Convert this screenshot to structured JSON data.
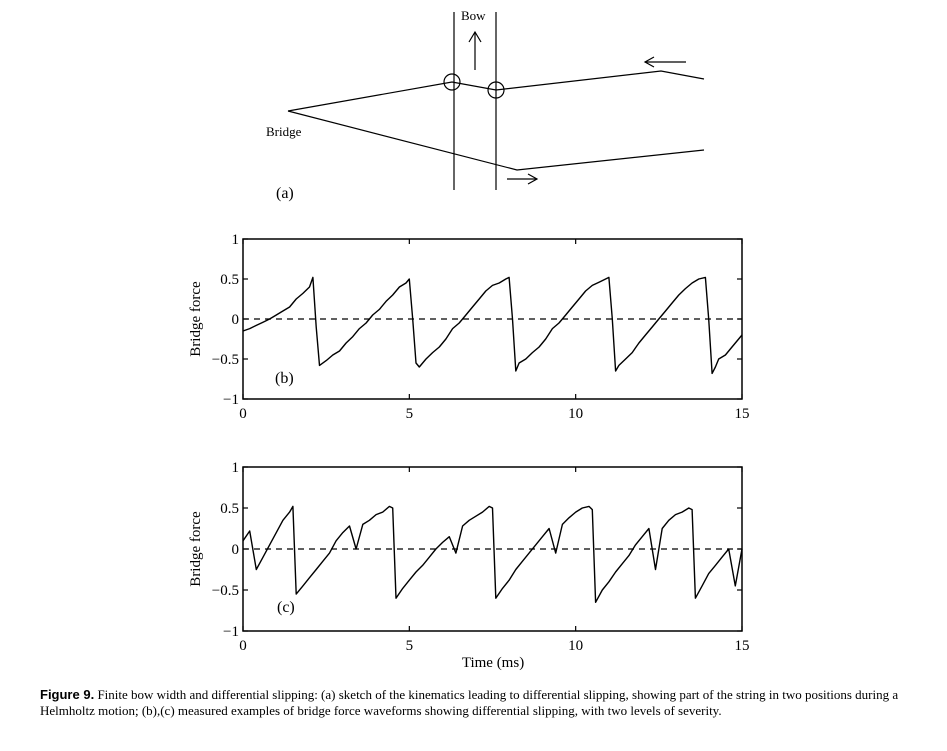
{
  "sketch": {
    "bow_label": "Bow",
    "bridge_label": "Bridge",
    "panel_label": "(a)"
  },
  "chart_data": [
    {
      "type": "line",
      "panel_label": "(b)",
      "xlabel": "",
      "ylabel": "Bridge force",
      "xlim": [
        0,
        15
      ],
      "ylim": [
        -1,
        1
      ],
      "xticks": [
        "0",
        "5",
        "10",
        "15"
      ],
      "yticks": [
        "−1",
        "−0.5",
        "0",
        "0.5",
        "1"
      ],
      "zero_line": "dashed",
      "x": [
        0.0,
        0.2,
        0.4,
        0.6,
        0.8,
        1.0,
        1.2,
        1.4,
        1.6,
        1.8,
        2.0,
        2.1,
        2.2,
        2.3,
        2.5,
        2.7,
        2.9,
        3.1,
        3.3,
        3.5,
        3.7,
        3.9,
        4.1,
        4.3,
        4.5,
        4.7,
        4.9,
        5.0,
        5.1,
        5.2,
        5.3,
        5.5,
        5.7,
        5.9,
        6.1,
        6.3,
        6.5,
        6.7,
        6.9,
        7.1,
        7.3,
        7.5,
        7.7,
        7.9,
        8.0,
        8.1,
        8.2,
        8.3,
        8.5,
        8.7,
        8.9,
        9.1,
        9.3,
        9.5,
        9.7,
        9.9,
        10.1,
        10.3,
        10.5,
        10.7,
        10.9,
        11.0,
        11.1,
        11.2,
        11.3,
        11.5,
        11.7,
        11.9,
        12.1,
        12.3,
        12.5,
        12.7,
        12.9,
        13.1,
        13.3,
        13.5,
        13.7,
        13.9,
        14.0,
        14.1,
        14.2,
        14.3,
        14.5,
        14.7,
        15.0
      ],
      "values": [
        -0.15,
        -0.12,
        -0.08,
        -0.04,
        0.0,
        0.05,
        0.1,
        0.15,
        0.25,
        0.32,
        0.4,
        0.52,
        -0.1,
        -0.58,
        -0.52,
        -0.45,
        -0.4,
        -0.3,
        -0.22,
        -0.12,
        -0.05,
        0.05,
        0.12,
        0.22,
        0.3,
        0.4,
        0.45,
        0.5,
        0.0,
        -0.55,
        -0.6,
        -0.5,
        -0.42,
        -0.35,
        -0.25,
        -0.12,
        -0.05,
        0.05,
        0.15,
        0.25,
        0.35,
        0.42,
        0.45,
        0.5,
        0.52,
        0.0,
        -0.65,
        -0.55,
        -0.5,
        -0.42,
        -0.35,
        -0.25,
        -0.12,
        -0.05,
        0.05,
        0.15,
        0.25,
        0.35,
        0.42,
        0.46,
        0.5,
        0.52,
        0.0,
        -0.65,
        -0.58,
        -0.5,
        -0.42,
        -0.3,
        -0.2,
        -0.1,
        0.0,
        0.1,
        0.2,
        0.3,
        0.38,
        0.45,
        0.5,
        0.52,
        0.0,
        -0.68,
        -0.6,
        -0.5,
        -0.45,
        -0.35,
        -0.2
      ]
    },
    {
      "type": "line",
      "panel_label": "(c)",
      "xlabel": "Time (ms)",
      "ylabel": "Bridge force",
      "xlim": [
        0,
        15
      ],
      "ylim": [
        -1,
        1
      ],
      "xticks": [
        "0",
        "5",
        "10",
        "15"
      ],
      "yticks": [
        "−1",
        "−0.5",
        "0",
        "0.5",
        "1"
      ],
      "zero_line": "dashed",
      "x": [
        0.0,
        0.2,
        0.4,
        0.6,
        0.8,
        1.0,
        1.2,
        1.4,
        1.5,
        1.6,
        1.8,
        2.0,
        2.2,
        2.4,
        2.6,
        2.8,
        3.0,
        3.2,
        3.4,
        3.6,
        3.8,
        4.0,
        4.2,
        4.4,
        4.5,
        4.6,
        4.8,
        5.0,
        5.2,
        5.4,
        5.6,
        5.8,
        6.0,
        6.2,
        6.4,
        6.6,
        6.8,
        7.0,
        7.2,
        7.4,
        7.5,
        7.6,
        7.8,
        8.0,
        8.2,
        8.4,
        8.6,
        8.8,
        9.0,
        9.2,
        9.4,
        9.6,
        9.8,
        10.0,
        10.2,
        10.4,
        10.5,
        10.6,
        10.8,
        11.0,
        11.2,
        11.4,
        11.6,
        11.8,
        12.0,
        12.2,
        12.4,
        12.6,
        12.8,
        13.0,
        13.2,
        13.4,
        13.5,
        13.6,
        13.8,
        14.0,
        14.2,
        14.4,
        14.6,
        14.8,
        15.0
      ],
      "values": [
        0.1,
        0.22,
        -0.25,
        -0.1,
        0.05,
        0.2,
        0.35,
        0.45,
        0.52,
        -0.55,
        -0.45,
        -0.35,
        -0.25,
        -0.15,
        -0.05,
        0.1,
        0.2,
        0.28,
        0.0,
        0.3,
        0.35,
        0.42,
        0.45,
        0.52,
        0.5,
        -0.6,
        -0.48,
        -0.38,
        -0.28,
        -0.2,
        -0.1,
        0.0,
        0.08,
        0.15,
        -0.05,
        0.28,
        0.35,
        0.4,
        0.45,
        0.52,
        0.5,
        -0.6,
        -0.48,
        -0.38,
        -0.25,
        -0.15,
        -0.05,
        0.05,
        0.15,
        0.25,
        -0.05,
        0.3,
        0.38,
        0.45,
        0.5,
        0.52,
        0.48,
        -0.65,
        -0.5,
        -0.4,
        -0.28,
        -0.18,
        -0.08,
        0.05,
        0.15,
        0.25,
        -0.25,
        0.25,
        0.35,
        0.42,
        0.45,
        0.5,
        0.48,
        -0.6,
        -0.45,
        -0.3,
        -0.2,
        -0.1,
        0.0,
        -0.45,
        0.0
      ]
    }
  ],
  "caption": {
    "label": "Figure 9.",
    "text": "Finite bow width and differential slipping: (a) sketch of the kinematics leading to differential slipping, showing part of the string in two positions during a Helmholtz motion; (b),(c) measured examples of bridge force waveforms showing differential slipping, with two levels of severity."
  }
}
